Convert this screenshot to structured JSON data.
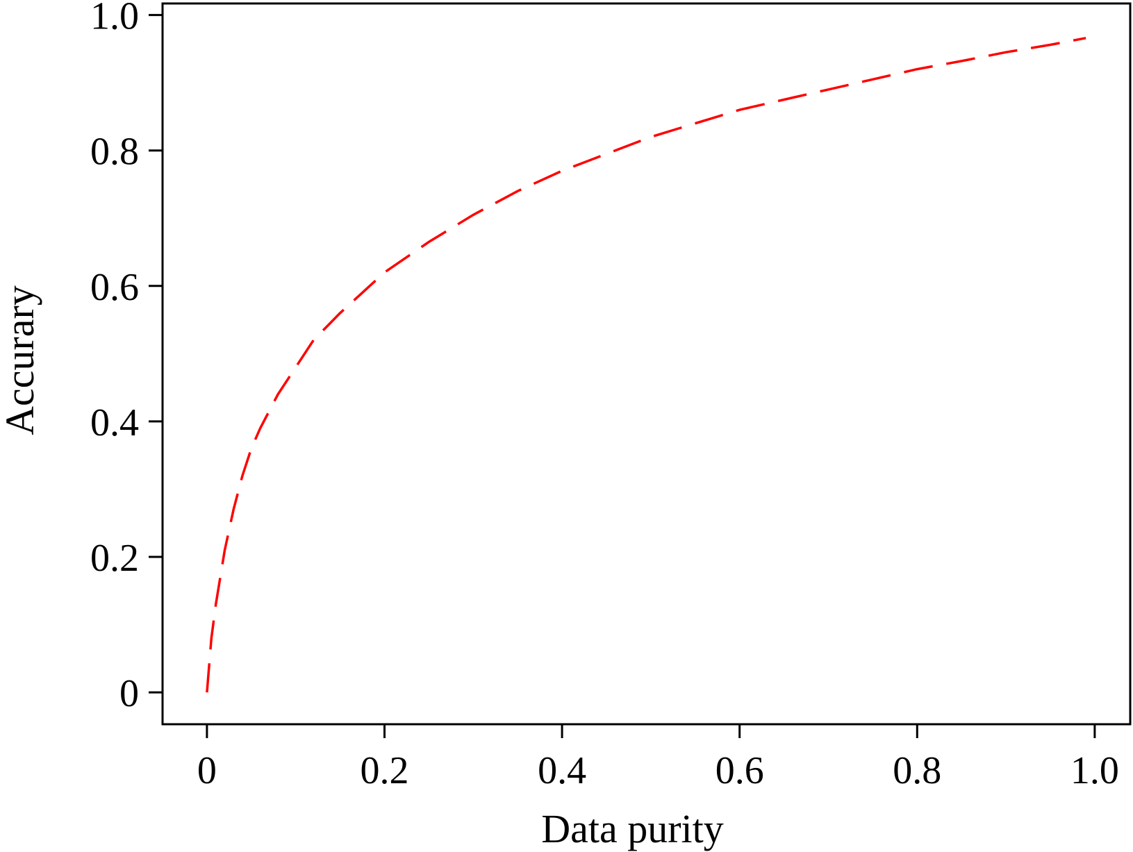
{
  "chart_data": {
    "type": "line",
    "title": "",
    "xlabel": "Data purity",
    "ylabel": "Accurary",
    "xlim": [
      -0.05,
      1.04
    ],
    "ylim": [
      -0.047,
      1.017
    ],
    "grid": false,
    "legend": "none",
    "x_ticks": [
      0,
      0.2,
      0.4,
      0.6,
      0.8,
      1.0
    ],
    "x_tick_labels": [
      "0",
      "0.2",
      "0.4",
      "0.6",
      "0.8",
      "1.0"
    ],
    "y_ticks": [
      0,
      0.2,
      0.4,
      0.6,
      0.8,
      1.0
    ],
    "y_tick_labels": [
      "0",
      "0.2",
      "0.4",
      "0.6",
      "0.8",
      "1.0"
    ],
    "series": [
      {
        "color": "#ff0000",
        "line_style": "dashed",
        "x": [
          0,
          0.005,
          0.01,
          0.02,
          0.03,
          0.04,
          0.05,
          0.06,
          0.08,
          0.1,
          0.12,
          0.15,
          0.2,
          0.25,
          0.3,
          0.35,
          0.4,
          0.45,
          0.5,
          0.55,
          0.6,
          0.65,
          0.7,
          0.75,
          0.8,
          0.85,
          0.9,
          0.95,
          0.99
        ],
        "y": [
          0,
          0.08,
          0.13,
          0.21,
          0.27,
          0.32,
          0.36,
          0.39,
          0.44,
          0.48,
          0.52,
          0.56,
          0.62,
          0.665,
          0.705,
          0.74,
          0.77,
          0.795,
          0.82,
          0.84,
          0.86,
          0.875,
          0.89,
          0.905,
          0.92,
          0.932,
          0.945,
          0.956,
          0.966
        ]
      }
    ]
  }
}
